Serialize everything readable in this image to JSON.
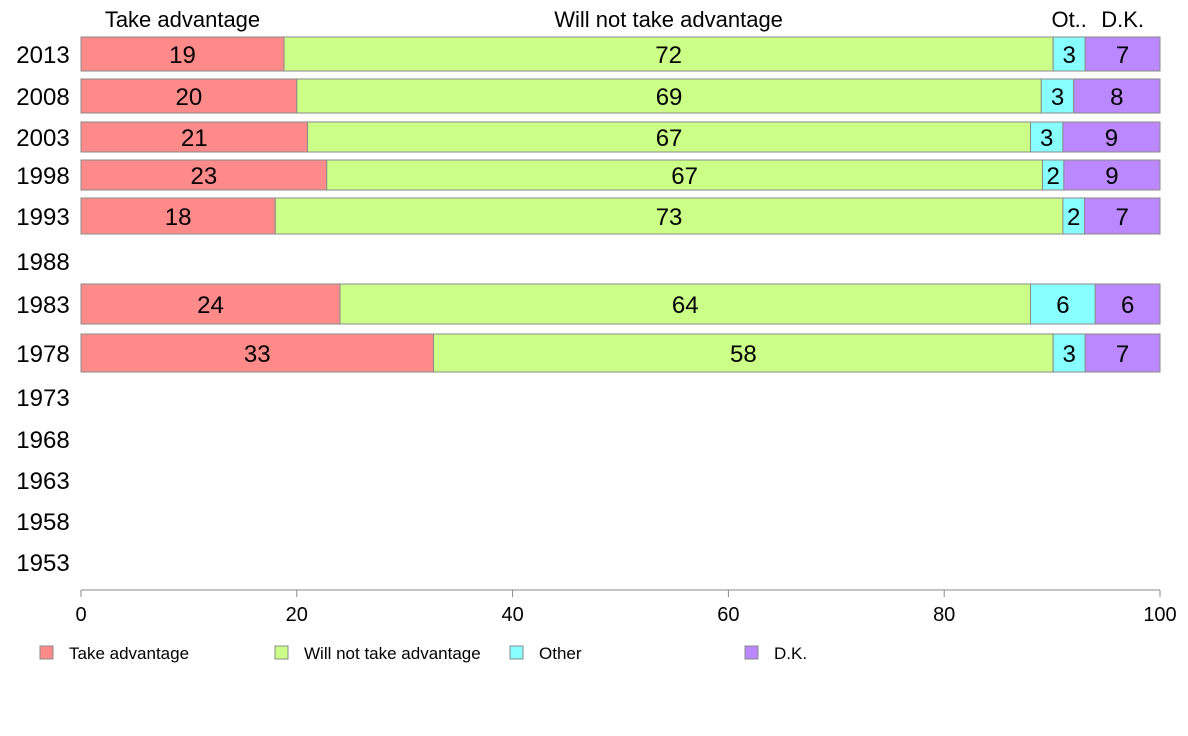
{
  "chart_data": {
    "type": "bar",
    "orientation": "horizontal",
    "stacked": true,
    "categories": [
      "2013",
      "2008",
      "2003",
      "1998",
      "1993",
      "1988",
      "1983",
      "1978",
      "1973",
      "1968",
      "1963",
      "1958",
      "1953"
    ],
    "series": [
      {
        "name": "Take advantage",
        "color": "#FF8A8A",
        "values": [
          19,
          20,
          21,
          23,
          18,
          null,
          24,
          33,
          null,
          null,
          null,
          null,
          null
        ]
      },
      {
        "name": "Will not take advantage",
        "color": "#CCFF88",
        "values": [
          72,
          69,
          67,
          67,
          73,
          null,
          64,
          58,
          null,
          null,
          null,
          null,
          null
        ]
      },
      {
        "name": "Other",
        "color": "#88FFFF",
        "values": [
          3,
          3,
          3,
          2,
          2,
          null,
          6,
          3,
          null,
          null,
          null,
          null,
          null
        ]
      },
      {
        "name": "D.K.",
        "color": "#BB88FF",
        "values": [
          7,
          8,
          9,
          9,
          7,
          null,
          6,
          7,
          null,
          null,
          null,
          null,
          null
        ]
      }
    ],
    "column_headers": [
      "Take advantage",
      "Will not take advantage",
      "Ot..",
      "D.K."
    ],
    "xlim": [
      0,
      100
    ],
    "xticks": [
      0,
      20,
      40,
      60,
      80,
      100
    ],
    "grid": false,
    "legend_position": "bottom"
  }
}
